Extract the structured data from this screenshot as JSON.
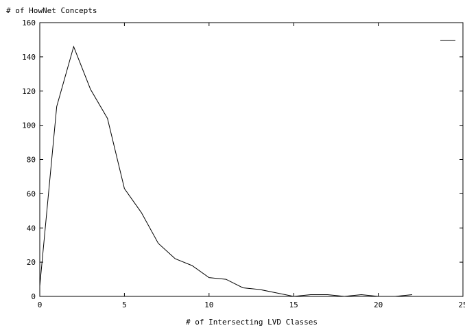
{
  "chart_data": {
    "type": "line",
    "ylabel": "# of HowNet Concepts",
    "xlabel": "# of Intersecting LVD Classes",
    "xlim": [
      0,
      25
    ],
    "ylim": [
      0,
      160
    ],
    "xticks": [
      0,
      5,
      10,
      15,
      20,
      25
    ],
    "yticks": [
      0,
      20,
      40,
      60,
      80,
      100,
      120,
      140,
      160
    ],
    "grid": false,
    "legend": "top-right",
    "series": [
      {
        "name": "",
        "color": "#000000",
        "x": [
          0,
          1,
          2,
          3,
          4,
          5,
          6,
          7,
          8,
          9,
          10,
          11,
          12,
          13,
          14,
          15,
          16,
          17,
          18,
          19,
          20,
          21,
          22
        ],
        "y": [
          6,
          111,
          146,
          121,
          104,
          63,
          49,
          31,
          22,
          18,
          11,
          10,
          5,
          4,
          2,
          0,
          1,
          1,
          0,
          1,
          0,
          0,
          1
        ]
      }
    ]
  }
}
